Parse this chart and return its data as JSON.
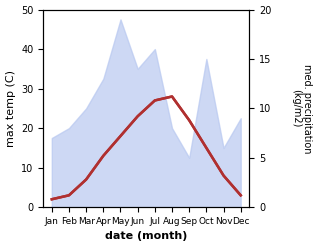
{
  "months": [
    "Jan",
    "Feb",
    "Mar",
    "Apr",
    "May",
    "Jun",
    "Jul",
    "Aug",
    "Sep",
    "Oct",
    "Nov",
    "Dec"
  ],
  "month_indices": [
    1,
    2,
    3,
    4,
    5,
    6,
    7,
    8,
    9,
    10,
    11,
    12
  ],
  "temperature": [
    2,
    3,
    7,
    13,
    18,
    23,
    27,
    28,
    22,
    15,
    8,
    3
  ],
  "precipitation": [
    7,
    8,
    10,
    13,
    19,
    14,
    16,
    8,
    5,
    15,
    6,
    9
  ],
  "temp_color": "#b03030",
  "precip_color": "#b8c8f0",
  "precip_alpha": 0.7,
  "xlabel": "date (month)",
  "ylabel_left": "max temp (C)",
  "ylabel_right": "med. precipitation\n(kg/m2)",
  "ylim_left": [
    0,
    50
  ],
  "ylim_right": [
    0,
    20
  ],
  "yticks_left": [
    0,
    10,
    20,
    30,
    40,
    50
  ],
  "yticks_right": [
    0,
    5,
    10,
    15,
    20
  ],
  "bg_color": "#ffffff",
  "line_width": 1.8
}
